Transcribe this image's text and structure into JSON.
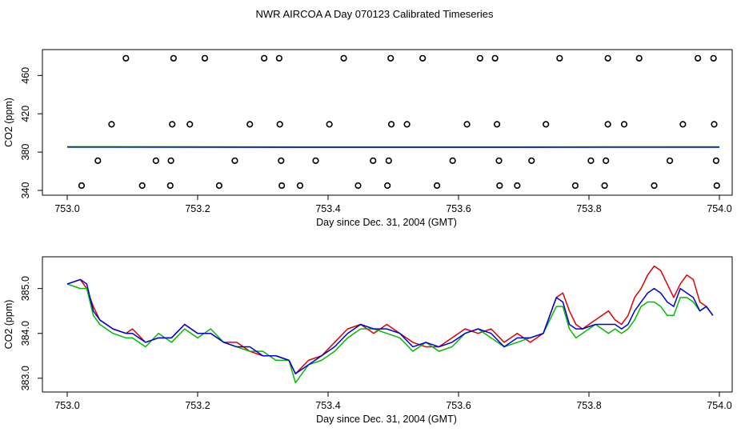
{
  "title": "NWR AIRCOA A  Day 070123  Calibrated Timeseries",
  "colors": {
    "red": "#dd0000",
    "green": "#00bb00",
    "blue": "#0000dd",
    "axis": "#000000"
  },
  "chart_data": [
    {
      "type": "scatter",
      "xlabel": "Day since Dec. 31, 2004 (GMT)",
      "ylabel": "CO2 (ppm)",
      "xlim": [
        753.0,
        754.0
      ],
      "ylim": [
        340,
        482
      ],
      "xticks": [
        753.0,
        753.2,
        753.4,
        753.6,
        753.8,
        754.0
      ],
      "xtick_labels": [
        "753.0",
        "753.2",
        "753.4",
        "753.6",
        "753.8",
        "754.0"
      ],
      "yticks": [
        340,
        380,
        420,
        460
      ],
      "ytick_labels": [
        "340",
        "380",
        "420",
        "460"
      ],
      "grid": false,
      "series": [
        {
          "color": "black",
          "marker": "circle",
          "points": [
            [
              753.09,
              478
            ],
            [
              753.163,
              478
            ],
            [
              753.211,
              478
            ],
            [
              753.302,
              478
            ],
            [
              753.325,
              478
            ],
            [
              753.424,
              478
            ],
            [
              753.496,
              478
            ],
            [
              753.545,
              478
            ],
            [
              753.633,
              478
            ],
            [
              753.656,
              478
            ],
            [
              753.755,
              478
            ],
            [
              753.829,
              478
            ],
            [
              753.877,
              478
            ],
            [
              753.967,
              478
            ],
            [
              753.991,
              478
            ],
            [
              753.068,
              409
            ],
            [
              753.161,
              409
            ],
            [
              753.188,
              409
            ],
            [
              753.28,
              409
            ],
            [
              753.326,
              409
            ],
            [
              753.402,
              409
            ],
            [
              753.497,
              409
            ],
            [
              753.521,
              409
            ],
            [
              753.613,
              409
            ],
            [
              753.659,
              409
            ],
            [
              753.734,
              409
            ],
            [
              753.829,
              409
            ],
            [
              753.854,
              409
            ],
            [
              753.944,
              409
            ],
            [
              753.992,
              409
            ],
            [
              753.047,
              371
            ],
            [
              753.136,
              371
            ],
            [
              753.159,
              371
            ],
            [
              753.257,
              371
            ],
            [
              753.328,
              371
            ],
            [
              753.381,
              371
            ],
            [
              753.469,
              371
            ],
            [
              753.493,
              371
            ],
            [
              753.591,
              371
            ],
            [
              753.662,
              371
            ],
            [
              753.712,
              371
            ],
            [
              753.803,
              371
            ],
            [
              753.826,
              371
            ],
            [
              753.924,
              371
            ],
            [
              753.995,
              371
            ],
            [
              753.022,
              345
            ],
            [
              753.115,
              345
            ],
            [
              753.158,
              345
            ],
            [
              753.233,
              345
            ],
            [
              753.329,
              345
            ],
            [
              753.357,
              345
            ],
            [
              753.446,
              345
            ],
            [
              753.491,
              345
            ],
            [
              753.567,
              345
            ],
            [
              753.663,
              345
            ],
            [
              753.69,
              345
            ],
            [
              753.779,
              345
            ],
            [
              753.824,
              345
            ],
            [
              753.9,
              345
            ],
            [
              753.996,
              345
            ]
          ]
        },
        {
          "color": "multi",
          "marker": "line",
          "points": [
            [
              753.0,
              385.4
            ],
            [
              753.5,
              385.2
            ],
            [
              754.0,
              385.3
            ]
          ]
        }
      ]
    },
    {
      "type": "line",
      "xlabel": "Day since Dec. 31, 2004 (GMT)",
      "ylabel": "CO2 (ppm)",
      "xlim": [
        753.0,
        754.0
      ],
      "ylim": [
        382.8,
        385.6
      ],
      "xticks": [
        753.0,
        753.2,
        753.4,
        753.6,
        753.8,
        754.0
      ],
      "xtick_labels": [
        "753.0",
        "753.2",
        "753.4",
        "753.6",
        "753.8",
        "754.0"
      ],
      "yticks": [
        383.0,
        384.0,
        385.0
      ],
      "ytick_labels": [
        "383.0",
        "384.0",
        "385.0"
      ],
      "grid": false,
      "series": [
        {
          "color": "red",
          "x": [
            753.0,
            753.02,
            753.03,
            753.04,
            753.05,
            753.07,
            753.09,
            753.1,
            753.12,
            753.14,
            753.16,
            753.18,
            753.2,
            753.22,
            753.24,
            753.26,
            753.28,
            753.3,
            753.32,
            753.34,
            753.35,
            753.37,
            753.39,
            753.41,
            753.43,
            753.45,
            753.47,
            753.49,
            753.51,
            753.53,
            753.55,
            753.57,
            753.59,
            753.61,
            753.63,
            753.65,
            753.67,
            753.69,
            753.71,
            753.73,
            753.75,
            753.76,
            753.77,
            753.78,
            753.79,
            753.81,
            753.83,
            753.84,
            753.85,
            753.86,
            753.87,
            753.88,
            753.89,
            753.9,
            753.91,
            753.92,
            753.93,
            753.94,
            753.95,
            753.96,
            753.97,
            753.98,
            753.99
          ],
          "y": [
            385.1,
            385.2,
            385.0,
            384.6,
            384.3,
            384.1,
            384.0,
            384.1,
            383.8,
            383.9,
            383.9,
            384.2,
            384.0,
            384.0,
            383.8,
            383.8,
            383.6,
            383.5,
            383.5,
            383.4,
            383.1,
            383.4,
            383.5,
            383.8,
            384.1,
            384.2,
            384.0,
            384.2,
            384.0,
            383.8,
            383.7,
            383.7,
            383.9,
            384.1,
            384.0,
            384.1,
            383.8,
            384.0,
            383.8,
            384.0,
            384.8,
            384.9,
            384.5,
            384.2,
            384.1,
            384.3,
            384.5,
            384.3,
            384.2,
            384.4,
            384.8,
            385.0,
            385.3,
            385.5,
            385.4,
            385.1,
            384.8,
            385.1,
            385.3,
            385.2,
            384.7,
            384.6,
            384.4
          ]
        },
        {
          "color": "green",
          "x": [
            753.0,
            753.02,
            753.03,
            753.04,
            753.05,
            753.07,
            753.09,
            753.1,
            753.12,
            753.14,
            753.16,
            753.18,
            753.2,
            753.22,
            753.24,
            753.26,
            753.28,
            753.3,
            753.32,
            753.34,
            753.35,
            753.37,
            753.39,
            753.41,
            753.43,
            753.45,
            753.47,
            753.49,
            753.51,
            753.53,
            753.55,
            753.57,
            753.59,
            753.61,
            753.63,
            753.65,
            753.67,
            753.69,
            753.71,
            753.73,
            753.75,
            753.76,
            753.77,
            753.78,
            753.79,
            753.81,
            753.83,
            753.84,
            753.85,
            753.86,
            753.87,
            753.88,
            753.89,
            753.9,
            753.91,
            753.92,
            753.93,
            753.94,
            753.95,
            753.96,
            753.97,
            753.98,
            753.99
          ],
          "y": [
            385.1,
            385.0,
            385.0,
            384.4,
            384.2,
            384.0,
            383.9,
            383.9,
            383.7,
            384.0,
            383.8,
            384.1,
            383.9,
            384.1,
            383.8,
            383.7,
            383.6,
            383.6,
            383.4,
            383.4,
            382.9,
            383.3,
            383.4,
            383.6,
            383.9,
            384.1,
            384.1,
            384.0,
            383.9,
            383.6,
            383.8,
            383.6,
            383.7,
            384.0,
            384.1,
            383.9,
            383.7,
            383.8,
            383.9,
            384.0,
            384.6,
            384.6,
            384.1,
            383.9,
            384.0,
            384.2,
            384.0,
            384.1,
            384.0,
            384.1,
            384.3,
            384.6,
            384.7,
            384.7,
            384.6,
            384.4,
            384.4,
            384.8,
            384.8,
            384.7,
            384.5,
            384.6,
            384.4
          ]
        },
        {
          "color": "blue",
          "x": [
            753.0,
            753.02,
            753.03,
            753.04,
            753.05,
            753.07,
            753.09,
            753.1,
            753.12,
            753.14,
            753.16,
            753.18,
            753.2,
            753.22,
            753.24,
            753.26,
            753.28,
            753.3,
            753.32,
            753.34,
            753.35,
            753.37,
            753.39,
            753.41,
            753.43,
            753.45,
            753.47,
            753.49,
            753.51,
            753.53,
            753.55,
            753.57,
            753.59,
            753.61,
            753.63,
            753.65,
            753.67,
            753.69,
            753.71,
            753.73,
            753.75,
            753.76,
            753.77,
            753.78,
            753.79,
            753.81,
            753.83,
            753.84,
            753.85,
            753.86,
            753.87,
            753.88,
            753.89,
            753.9,
            753.91,
            753.92,
            753.93,
            753.94,
            753.95,
            753.96,
            753.97,
            753.98,
            753.99
          ],
          "y": [
            385.1,
            385.2,
            385.1,
            384.5,
            384.3,
            384.1,
            384.0,
            384.0,
            383.8,
            383.9,
            383.9,
            384.2,
            384.0,
            384.0,
            383.8,
            383.7,
            383.7,
            383.5,
            383.5,
            383.4,
            383.1,
            383.3,
            383.5,
            383.7,
            384.0,
            384.2,
            384.1,
            384.1,
            384.0,
            383.7,
            383.8,
            383.7,
            383.8,
            384.0,
            384.1,
            384.0,
            383.7,
            383.9,
            383.9,
            384.0,
            384.8,
            384.7,
            384.2,
            384.1,
            384.1,
            384.2,
            384.2,
            384.2,
            384.1,
            384.2,
            384.5,
            384.7,
            384.9,
            385.0,
            384.9,
            384.7,
            384.6,
            385.0,
            384.9,
            384.8,
            384.5,
            384.6,
            384.4
          ]
        }
      ]
    }
  ]
}
